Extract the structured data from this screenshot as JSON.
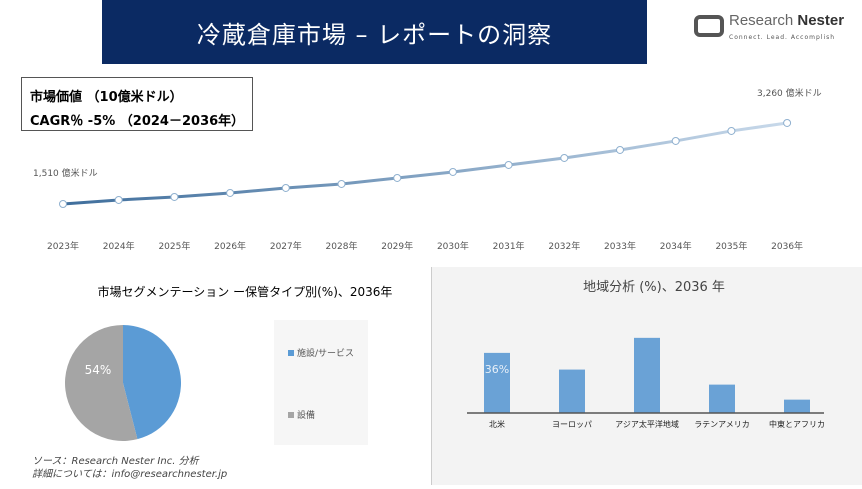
{
  "header": {
    "title": "冷蔵倉庫市場 – レポートの洞察",
    "logo_name": "Research Nester",
    "logo_tagline": "Connect. Lead. Accomplish"
  },
  "info": {
    "market_value": "市場価値 （10億米ドル）",
    "cagr": "CAGR％ -5% （2024－2036年）"
  },
  "colors": {
    "banner": "#0b2a63",
    "line": "#4a7aa8",
    "bar": "#6aa2d6",
    "pie_blue": "#5b9bd5",
    "pie_gray": "#a5a5a5"
  },
  "chart_data": [
    {
      "type": "line",
      "x": [
        "2023年",
        "2024年",
        "2025年",
        "2026年",
        "2027年",
        "2028年",
        "2029年",
        "2030年",
        "2031年",
        "2032年",
        "2033年",
        "2034年",
        "2035年",
        "2036年"
      ],
      "values": [
        1510,
        1597,
        1662,
        1748,
        1856,
        1943,
        2072,
        2202,
        2353,
        2504,
        2677,
        2872,
        3088,
        3260
      ],
      "annotations": {
        "start": "1,510 億米ドル",
        "end": "3,260 億米ドル"
      },
      "grid": false
    },
    {
      "type": "pie",
      "title": "市場セグメンテーション ー保管タイプ別(%)、2036年",
      "slices": [
        {
          "name": "施設/サービス",
          "value": 46,
          "color": "#5b9bd5"
        },
        {
          "name": "設備",
          "value": 54,
          "color": "#a5a5a5",
          "label": "54%"
        }
      ],
      "legend": "right"
    },
    {
      "type": "bar",
      "title": "地域分析 (%)、2036 年",
      "categories": [
        "北米",
        "ヨーロッパ",
        "アジア太平洋地域",
        "ラテンアメリカ",
        "中東とアフリカ"
      ],
      "values": [
        36,
        26,
        45,
        17,
        8
      ],
      "data_labels": [
        "36%",
        "",
        "",
        "",
        ""
      ]
    }
  ],
  "footer": {
    "source": "ソース：Research Nester Inc. 分析",
    "contact": "詳細については：info@researchnester.jp"
  }
}
